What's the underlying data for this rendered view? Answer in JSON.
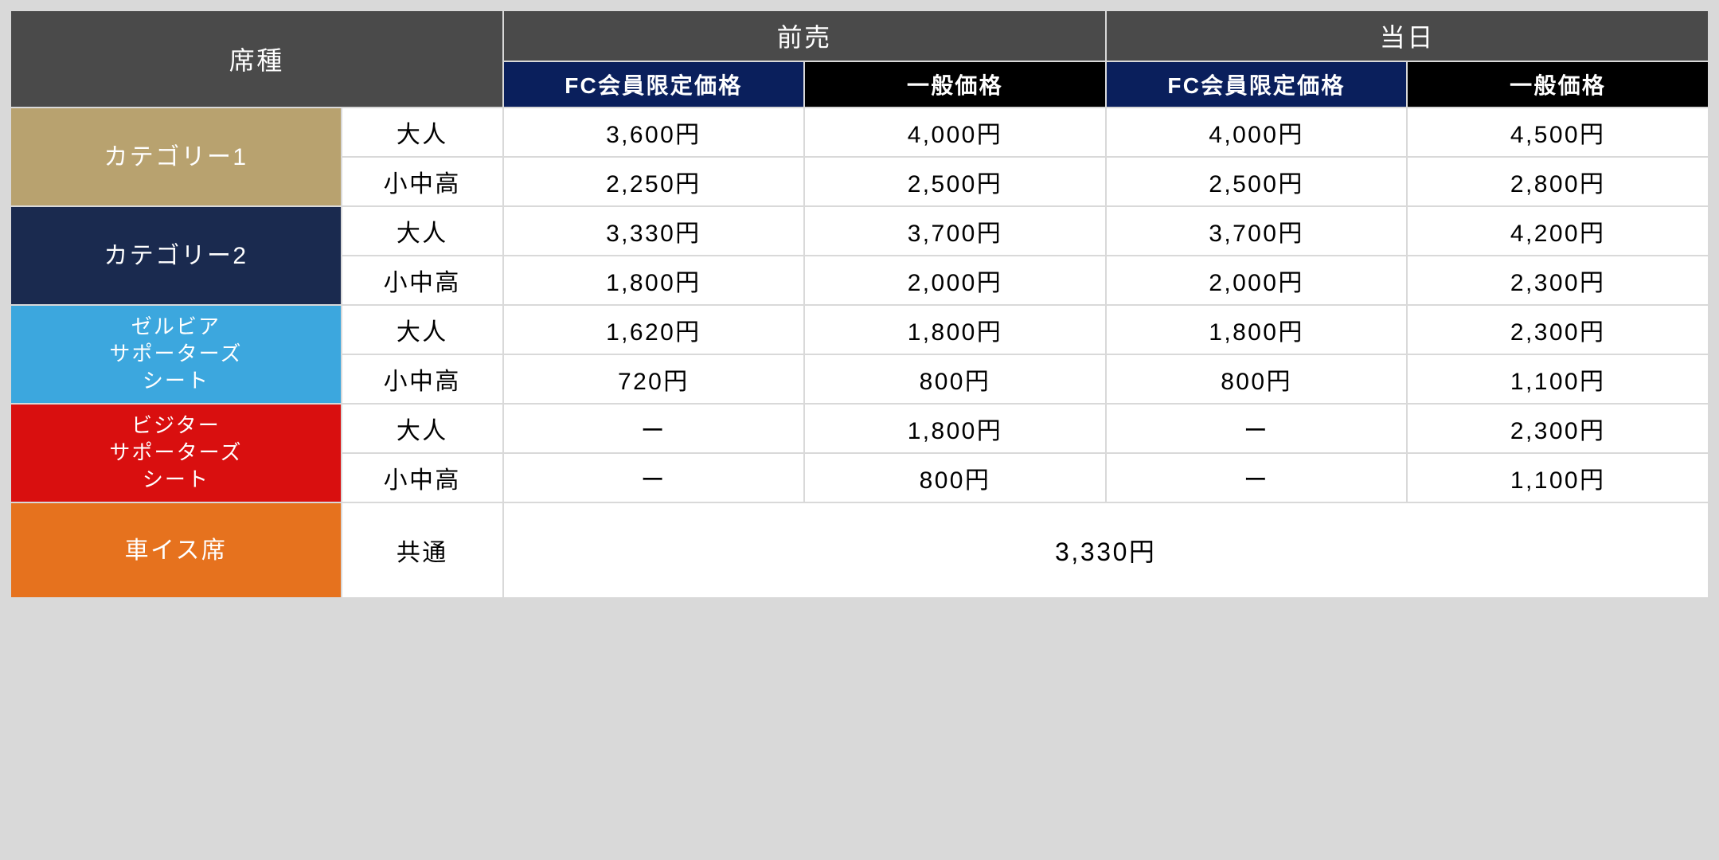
{
  "headers": {
    "seatType": "席種",
    "advance": "前売",
    "sameDay": "当日",
    "fcMember": "FC会員限定価格",
    "general": "一般価格"
  },
  "ageLabels": {
    "adult": "大人",
    "child": "小中高",
    "common": "共通"
  },
  "categories": [
    {
      "name": "カテゴリー1",
      "bg": "#b8a26f",
      "rows": [
        {
          "age": "adult",
          "prices": [
            "3,600円",
            "4,000円",
            "4,000円",
            "4,500円"
          ]
        },
        {
          "age": "child",
          "prices": [
            "2,250円",
            "2,500円",
            "2,500円",
            "2,800円"
          ]
        }
      ]
    },
    {
      "name": "カテゴリー2",
      "bg": "#1a2a4f",
      "rows": [
        {
          "age": "adult",
          "prices": [
            "3,330円",
            "3,700円",
            "3,700円",
            "4,200円"
          ]
        },
        {
          "age": "child",
          "prices": [
            "1,800円",
            "2,000円",
            "2,000円",
            "2,300円"
          ]
        }
      ]
    },
    {
      "name": "ゼルビア\nサポーターズ\nシート",
      "bg": "#3ca7de",
      "fontSize": "26px",
      "rows": [
        {
          "age": "adult",
          "prices": [
            "1,620円",
            "1,800円",
            "1,800円",
            "2,300円"
          ]
        },
        {
          "age": "child",
          "prices": [
            "720円",
            "800円",
            "800円",
            "1,100円"
          ]
        }
      ]
    },
    {
      "name": "ビジター\nサポーターズ\nシート",
      "bg": "#d90f0f",
      "fontSize": "26px",
      "rows": [
        {
          "age": "adult",
          "prices": [
            "ー",
            "1,800円",
            "ー",
            "2,300円"
          ]
        },
        {
          "age": "child",
          "prices": [
            "ー",
            "800円",
            "ー",
            "1,100円"
          ]
        }
      ]
    }
  ],
  "wheelchair": {
    "name": "車イス席",
    "bg": "#e6721e",
    "age": "common",
    "price": "3,330円"
  }
}
